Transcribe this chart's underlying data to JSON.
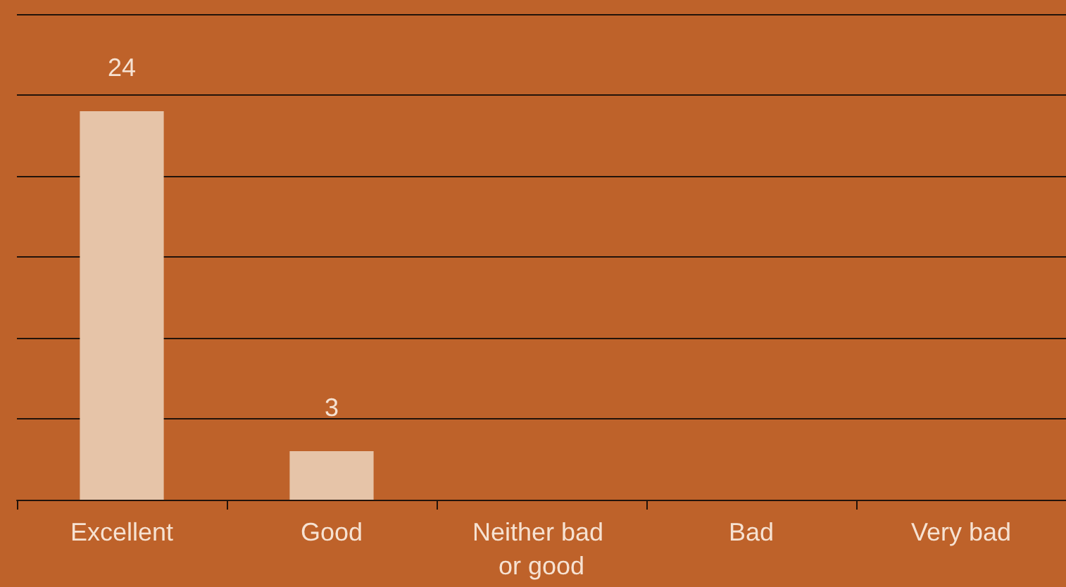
{
  "chart_data": {
    "type": "bar",
    "categories": [
      "Excellent",
      "Good",
      "Neither bad or good",
      "Bad",
      "Very bad"
    ],
    "values": [
      24,
      3,
      0,
      0,
      0
    ],
    "value_labels": [
      "24",
      "3",
      null,
      null,
      null
    ],
    "color": "#e6c4a8",
    "ylim": [
      0,
      30
    ],
    "yticks": [
      {
        "value": 0,
        "label": null
      },
      {
        "value": 5,
        "label": null
      },
      {
        "value": 10,
        "label": null
      },
      {
        "value": 15,
        "label": null
      },
      {
        "value": 20,
        "label": null
      },
      {
        "value": 25,
        "label": null
      },
      {
        "value": 30,
        "label": null
      }
    ],
    "grid": "y",
    "tick_labels": "x"
  }
}
